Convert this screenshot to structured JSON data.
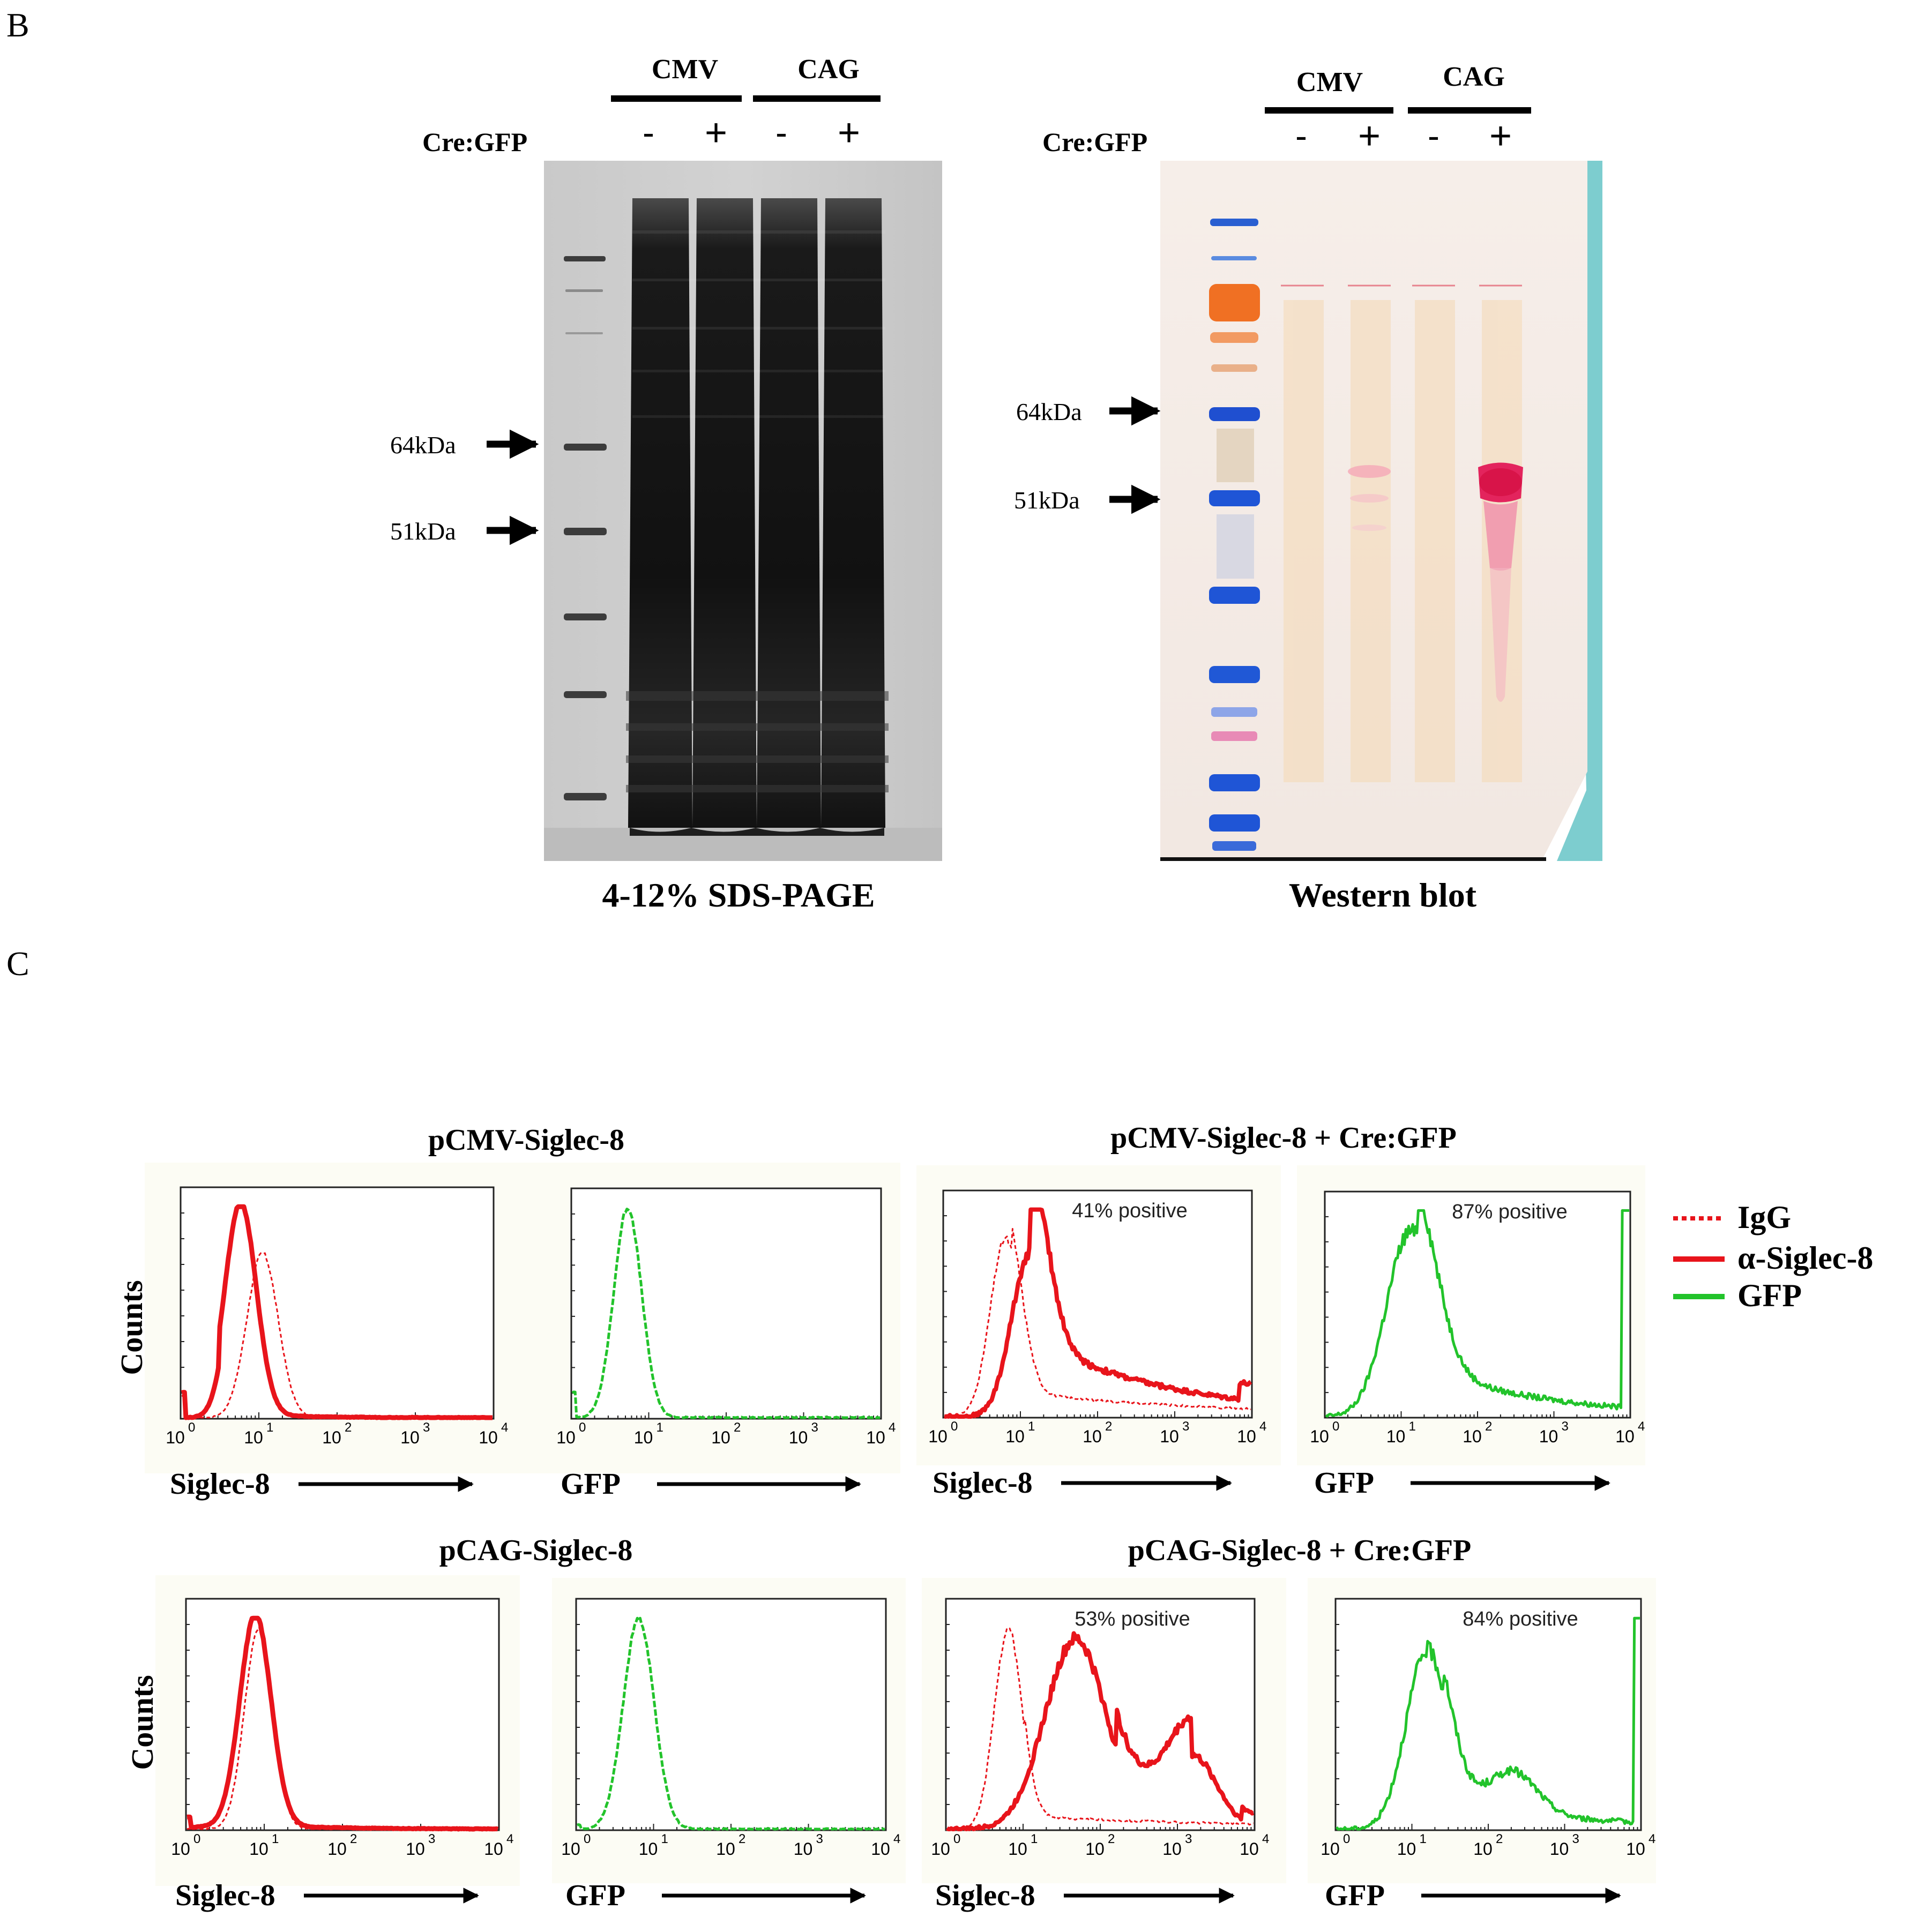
{
  "panel_b": {
    "letter": "B",
    "gel": {
      "promoter_labels": [
        "CMV",
        "CAG"
      ],
      "cre_label": "Cre:GFP",
      "lane_signs": [
        "-",
        "+",
        "-",
        "+"
      ],
      "markers": [
        "64kDa",
        "51kDa"
      ],
      "caption": "4-12% SDS-PAGE"
    },
    "blot": {
      "promoter_labels": [
        "CMV",
        "CAG"
      ],
      "cre_label": "Cre:GFP",
      "lane_signs": [
        "-",
        "+",
        "-",
        "+"
      ],
      "markers": [
        "64kDa",
        "51kDa"
      ],
      "caption": "Western blot"
    }
  },
  "panel_c": {
    "letter": "C",
    "rows": [
      {
        "left_title": "pCMV-Siglec-8",
        "right_title": "pCMV-Siglec-8 + Cre:GFP",
        "ylabel": "Counts",
        "plots": [
          {
            "xlabel": "Siglec-8",
            "annotation": ""
          },
          {
            "xlabel": "GFP",
            "annotation": ""
          },
          {
            "xlabel": "Siglec-8",
            "annotation": "41%  positive"
          },
          {
            "xlabel": "GFP",
            "annotation": "87% positive"
          }
        ]
      },
      {
        "left_title": "pCAG-Siglec-8",
        "right_title": "pCAG-Siglec-8 + Cre:GFP",
        "ylabel": "Counts",
        "plots": [
          {
            "xlabel": "Siglec-8",
            "annotation": ""
          },
          {
            "xlabel": "GFP",
            "annotation": ""
          },
          {
            "xlabel": "Siglec-8",
            "annotation": "53% positive"
          },
          {
            "xlabel": "GFP",
            "annotation": "84% positive"
          }
        ]
      }
    ],
    "tick_labels": [
      "10",
      "10",
      "10",
      "10",
      "10"
    ],
    "tick_exponents": [
      "0",
      "1",
      "2",
      "3",
      "4"
    ],
    "legend": [
      {
        "label": "IgG",
        "color": "#e8141b",
        "style": "dotted"
      },
      {
        "label": "α-Siglec-8",
        "color": "#e8141b",
        "style": "solid"
      },
      {
        "label": "GFP",
        "color": "#22c32b",
        "style": "solid"
      }
    ]
  }
}
